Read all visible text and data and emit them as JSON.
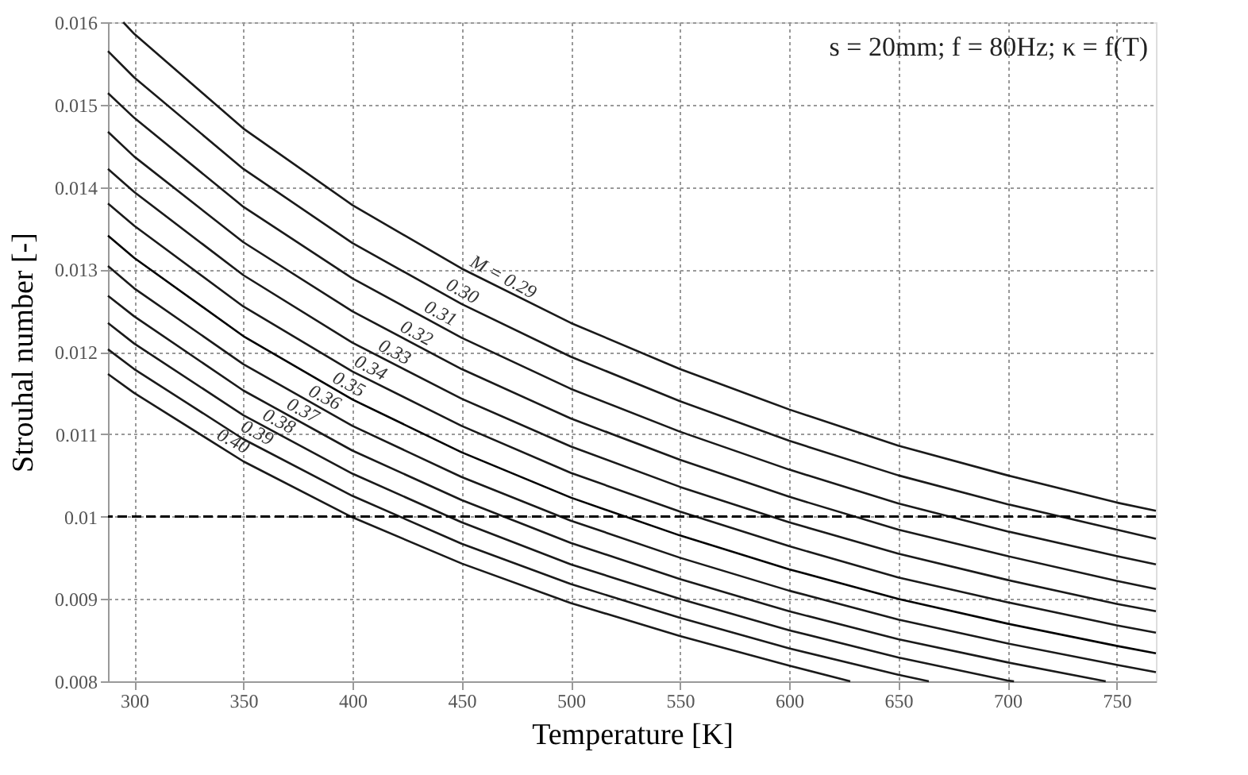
{
  "chart_data": {
    "type": "line",
    "xlabel": "Temperature [K]",
    "ylabel": "Strouhal number [-]",
    "xlim": [
      288,
      768
    ],
    "xticks": [
      300,
      350,
      400,
      450,
      500,
      550,
      600,
      650,
      700,
      750
    ],
    "ylim": [
      0.008,
      0.016
    ],
    "yticks": [
      0.008,
      0.009,
      0.01,
      0.011,
      0.012,
      0.013,
      0.014,
      0.015,
      0.016
    ],
    "grid": true,
    "marker": "none",
    "line_style": "solid",
    "series": [
      {
        "color": "#1a1a1a",
        "x": [
          295,
          300,
          350,
          400,
          450,
          500,
          550,
          600,
          650,
          700,
          750,
          768
        ],
        "values": [
          0.016,
          0.01586,
          0.01471,
          0.01378,
          0.01301,
          0.01235,
          0.01179,
          0.0113,
          0.01086,
          0.0105,
          0.01017,
          0.01007
        ]
      },
      {
        "color": "#1a1a1a",
        "x": [
          288,
          300,
          350,
          400,
          450,
          500,
          550,
          600,
          650,
          700,
          750,
          768
        ],
        "values": [
          0.01565,
          0.01533,
          0.01422,
          0.01332,
          0.01258,
          0.01194,
          0.0114,
          0.01092,
          0.0105,
          0.01015,
          0.00984,
          0.00973
        ]
      },
      {
        "color": "#1a1a1a",
        "x": [
          288,
          300,
          350,
          400,
          450,
          500,
          550,
          600,
          650,
          700,
          750,
          768
        ],
        "values": [
          0.01514,
          0.01484,
          0.01376,
          0.01289,
          0.01217,
          0.01155,
          0.01103,
          0.01057,
          0.01016,
          0.00982,
          0.00952,
          0.00942
        ]
      },
      {
        "color": "#1a1a1a",
        "x": [
          288,
          300,
          350,
          400,
          450,
          500,
          550,
          600,
          650,
          700,
          750,
          768
        ],
        "values": [
          0.01467,
          0.01437,
          0.01333,
          0.01249,
          0.01179,
          0.01119,
          0.01069,
          0.01024,
          0.00984,
          0.00952,
          0.00922,
          0.00912
        ]
      },
      {
        "color": "#1a1a1a",
        "x": [
          288,
          300,
          350,
          400,
          450,
          500,
          550,
          600,
          650,
          700,
          750,
          768
        ],
        "values": [
          0.01422,
          0.01394,
          0.01293,
          0.01211,
          0.01143,
          0.01085,
          0.01036,
          0.00993,
          0.00955,
          0.00923,
          0.00894,
          0.00885
        ]
      },
      {
        "color": "#1a1a1a",
        "x": [
          288,
          300,
          350,
          400,
          450,
          500,
          550,
          600,
          650,
          700,
          750,
          768
        ],
        "values": [
          0.0138,
          0.01353,
          0.01255,
          0.01176,
          0.0111,
          0.01053,
          0.01006,
          0.00964,
          0.00926,
          0.00896,
          0.00868,
          0.00859
        ]
      },
      {
        "color": "#000000",
        "x": [
          288,
          300,
          350,
          400,
          450,
          500,
          550,
          600,
          650,
          700,
          750,
          768
        ],
        "values": [
          0.01341,
          0.01314,
          0.01219,
          0.01142,
          0.01078,
          0.01023,
          0.00977,
          0.00936,
          0.009,
          0.0087,
          0.00843,
          0.00834
        ]
      },
      {
        "color": "#1a1a1a",
        "x": [
          288,
          300,
          350,
          400,
          450,
          500,
          550,
          600,
          650,
          700,
          750,
          768
        ],
        "values": [
          0.01304,
          0.01277,
          0.01185,
          0.0111,
          0.01048,
          0.00995,
          0.0095,
          0.0091,
          0.00875,
          0.00846,
          0.0082,
          0.00811
        ]
      },
      {
        "color": "#1a1a1a",
        "x": [
          288,
          300,
          350,
          400,
          450,
          500,
          550,
          600,
          650,
          700,
          745
        ],
        "values": [
          0.01268,
          0.01243,
          0.01153,
          0.0108,
          0.0102,
          0.00968,
          0.00924,
          0.00885,
          0.00851,
          0.00823,
          0.008
        ]
      },
      {
        "color": "#1a1a1a",
        "x": [
          288,
          300,
          350,
          400,
          450,
          500,
          550,
          600,
          650,
          700,
          703
        ],
        "values": [
          0.01235,
          0.0121,
          0.01123,
          0.01052,
          0.00993,
          0.00942,
          0.009,
          0.00862,
          0.00829,
          0.00801,
          0.008
        ]
      },
      {
        "color": "#1a1a1a",
        "x": [
          288,
          300,
          350,
          400,
          450,
          500,
          550,
          600,
          650,
          664
        ],
        "values": [
          0.01203,
          0.01179,
          0.01094,
          0.01025,
          0.00967,
          0.00918,
          0.00877,
          0.0084,
          0.00808,
          0.008
        ]
      },
      {
        "color": "#1a1a1a",
        "x": [
          288,
          300,
          350,
          400,
          450,
          500,
          550,
          600,
          628
        ],
        "values": [
          0.01173,
          0.0115,
          0.01067,
          0.00999,
          0.00943,
          0.00895,
          0.00855,
          0.00819,
          0.008
        ]
      }
    ],
    "ref_lines": [
      {
        "axis": "y",
        "value": 0.01,
        "color": "#000000",
        "line_style": "dashed"
      }
    ],
    "annotations": [
      "s = 20mm;   f = 80Hz; κ = f(T)",
      {
        "text": "M = 0.29",
        "x": 452,
        "y": 0.01298
      },
      {
        "text": "0.30",
        "x": 441,
        "y": 0.0127
      },
      {
        "text": "0.31",
        "x": 431,
        "y": 0.01243
      },
      {
        "text": "0.32",
        "x": 420,
        "y": 0.01219
      },
      {
        "text": "0.33",
        "x": 410,
        "y": 0.01196
      },
      {
        "text": "0.34",
        "x": 399,
        "y": 0.01177
      },
      {
        "text": "0.35",
        "x": 389,
        "y": 0.01157
      },
      {
        "text": "0.36",
        "x": 378,
        "y": 0.01141
      },
      {
        "text": "0.37",
        "x": 368,
        "y": 0.01125
      },
      {
        "text": "0.38",
        "x": 357,
        "y": 0.01112
      },
      {
        "text": "0.39",
        "x": 347,
        "y": 0.01098
      },
      {
        "text": "0.40",
        "x": 336,
        "y": 0.01088
      }
    ]
  }
}
